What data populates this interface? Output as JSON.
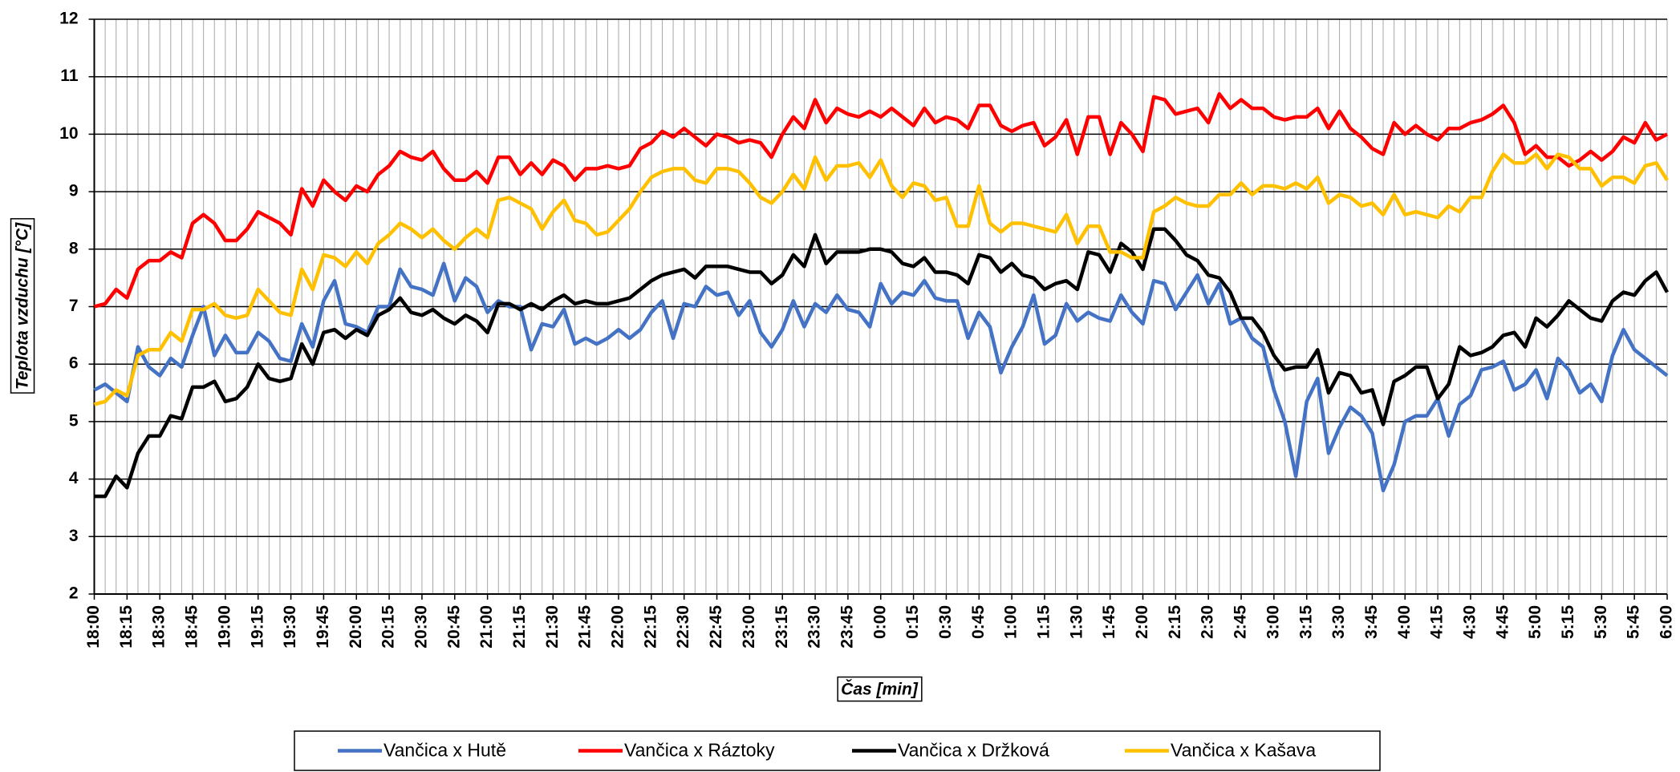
{
  "chart_data": {
    "type": "line",
    "ylabel": "Teplota vzduchu [°C]",
    "xlabel": "Čas [min]",
    "ylim": [
      2,
      12
    ],
    "yticks": [
      2,
      3,
      4,
      5,
      6,
      7,
      8,
      9,
      10,
      11,
      12
    ],
    "grid": true,
    "legend": "bottom",
    "categories": [
      "18:00",
      null,
      null,
      "18:15",
      null,
      null,
      "18:30",
      null,
      null,
      "18:45",
      null,
      null,
      "19:00",
      null,
      null,
      "19:15",
      null,
      null,
      "19:30",
      null,
      null,
      "19:45",
      null,
      null,
      "20:00",
      null,
      null,
      "20:15",
      null,
      null,
      "20:30",
      null,
      null,
      "20:45",
      null,
      null,
      "21:00",
      null,
      null,
      "21:15",
      null,
      null,
      "21:30",
      null,
      null,
      "21:45",
      null,
      null,
      "22:00",
      null,
      null,
      "22:15",
      null,
      null,
      "22:30",
      null,
      null,
      "22:45",
      null,
      null,
      "23:00",
      null,
      null,
      "23:15",
      null,
      null,
      "23:30",
      null,
      null,
      "23:45",
      null,
      null,
      "0:00",
      null,
      null,
      "0:15",
      null,
      null,
      "0:30",
      null,
      null,
      "0:45",
      null,
      null,
      "1:00",
      null,
      null,
      "1:15",
      null,
      null,
      "1:30",
      null,
      null,
      "1:45",
      null,
      null,
      "2:00",
      null,
      null,
      "2:15",
      null,
      null,
      "2:30",
      null,
      null,
      "2:45",
      null,
      null,
      "3:00",
      null,
      null,
      "3:15",
      null,
      null,
      "3:30",
      null,
      null,
      "3:45",
      null,
      null,
      "4:00",
      null,
      null,
      "4:15",
      null,
      null,
      "4:30",
      null,
      null,
      "4:45",
      null,
      null,
      "5:00",
      null,
      null,
      "5:15",
      null,
      null,
      "5:30",
      null,
      null,
      "5:45",
      null,
      null,
      "6:00"
    ],
    "series": [
      {
        "name": "Vančica x Hutě",
        "color": "#4472c4",
        "values": [
          5.55,
          5.65,
          5.5,
          5.35,
          6.3,
          5.95,
          5.8,
          6.1,
          5.95,
          6.5,
          7.0,
          6.15,
          6.5,
          6.2,
          6.2,
          6.55,
          6.4,
          6.1,
          6.05,
          6.7,
          6.3,
          7.1,
          7.45,
          6.7,
          6.65,
          6.55,
          7.0,
          7.0,
          7.65,
          7.35,
          7.3,
          7.2,
          7.75,
          7.1,
          7.5,
          7.35,
          6.9,
          7.1,
          7.0,
          7.0,
          6.25,
          6.7,
          6.65,
          6.95,
          6.35,
          6.45,
          6.35,
          6.45,
          6.6,
          6.45,
          6.6,
          6.9,
          7.1,
          6.45,
          7.05,
          7.0,
          7.35,
          7.2,
          7.25,
          6.85,
          7.1,
          6.55,
          6.3,
          6.6,
          7.1,
          6.65,
          7.05,
          6.9,
          7.2,
          6.95,
          6.9,
          6.65,
          7.4,
          7.05,
          7.25,
          7.2,
          7.45,
          7.15,
          7.1,
          7.1,
          6.45,
          6.9,
          6.65,
          5.85,
          6.3,
          6.65,
          7.2,
          6.35,
          6.5,
          7.05,
          6.75,
          6.9,
          6.8,
          6.75,
          7.2,
          6.9,
          6.7,
          7.45,
          7.4,
          6.95,
          7.25,
          7.55,
          7.05,
          7.4,
          6.7,
          6.8,
          6.45,
          6.3,
          5.55,
          5.0,
          4.05,
          5.35,
          5.75,
          4.45,
          4.9,
          5.25,
          5.1,
          4.8,
          3.8,
          4.25,
          5.0,
          5.1,
          5.1,
          5.4,
          4.75,
          5.3,
          5.45,
          5.9,
          5.95,
          6.05,
          5.55,
          5.65,
          5.9,
          5.4,
          6.1,
          5.9,
          5.5,
          5.65,
          5.35,
          6.15,
          6.6,
          6.25,
          6.1,
          5.95,
          5.8
        ]
      },
      {
        "name": "Vančica x Ráztoky",
        "color": "#ff0000",
        "values": [
          7.0,
          7.05,
          7.3,
          7.15,
          7.65,
          7.8,
          7.8,
          7.95,
          7.85,
          8.45,
          8.6,
          8.45,
          8.15,
          8.15,
          8.35,
          8.65,
          8.55,
          8.45,
          8.25,
          9.05,
          8.75,
          9.2,
          9.0,
          8.85,
          9.1,
          9.0,
          9.3,
          9.45,
          9.7,
          9.6,
          9.55,
          9.7,
          9.4,
          9.2,
          9.2,
          9.35,
          9.15,
          9.6,
          9.6,
          9.3,
          9.5,
          9.3,
          9.55,
          9.45,
          9.2,
          9.4,
          9.4,
          9.45,
          9.4,
          9.45,
          9.75,
          9.85,
          10.05,
          9.95,
          10.1,
          9.95,
          9.8,
          10.0,
          9.95,
          9.85,
          9.9,
          9.85,
          9.6,
          10.0,
          10.3,
          10.1,
          10.6,
          10.2,
          10.45,
          10.35,
          10.3,
          10.4,
          10.3,
          10.45,
          10.3,
          10.15,
          10.45,
          10.2,
          10.3,
          10.25,
          10.1,
          10.5,
          10.5,
          10.15,
          10.05,
          10.15,
          10.2,
          9.8,
          9.95,
          10.25,
          9.65,
          10.3,
          10.3,
          9.65,
          10.2,
          10.0,
          9.7,
          10.65,
          10.6,
          10.35,
          10.4,
          10.45,
          10.2,
          10.7,
          10.45,
          10.6,
          10.45,
          10.45,
          10.3,
          10.25,
          10.3,
          10.3,
          10.45,
          10.1,
          10.4,
          10.1,
          9.95,
          9.75,
          9.65,
          10.2,
          10.0,
          10.15,
          10.0,
          9.9,
          10.1,
          10.1,
          10.2,
          10.25,
          10.35,
          10.5,
          10.2,
          9.65,
          9.8,
          9.6,
          9.6,
          9.45,
          9.55,
          9.7,
          9.55,
          9.7,
          9.95,
          9.85,
          10.2,
          9.9,
          10.0
        ]
      },
      {
        "name": "Vančica x Držková",
        "color": "#000000",
        "values": [
          3.7,
          3.7,
          4.05,
          3.85,
          4.45,
          4.75,
          4.75,
          5.1,
          5.05,
          5.6,
          5.6,
          5.7,
          5.35,
          5.4,
          5.6,
          6.0,
          5.75,
          5.7,
          5.75,
          6.35,
          6.0,
          6.55,
          6.6,
          6.45,
          6.6,
          6.5,
          6.85,
          6.95,
          7.15,
          6.9,
          6.85,
          6.95,
          6.8,
          6.7,
          6.85,
          6.75,
          6.55,
          7.05,
          7.05,
          6.95,
          7.05,
          6.95,
          7.1,
          7.2,
          7.05,
          7.1,
          7.05,
          7.05,
          7.1,
          7.15,
          7.3,
          7.45,
          7.55,
          7.6,
          7.65,
          7.5,
          7.7,
          7.7,
          7.7,
          7.65,
          7.6,
          7.6,
          7.4,
          7.55,
          7.9,
          7.7,
          8.25,
          7.75,
          7.95,
          7.95,
          7.95,
          8.0,
          8.0,
          7.95,
          7.75,
          7.7,
          7.85,
          7.6,
          7.6,
          7.55,
          7.4,
          7.9,
          7.85,
          7.6,
          7.75,
          7.55,
          7.5,
          7.3,
          7.4,
          7.45,
          7.3,
          7.95,
          7.9,
          7.6,
          8.1,
          7.95,
          7.65,
          8.35,
          8.35,
          8.15,
          7.9,
          7.8,
          7.55,
          7.5,
          7.25,
          6.8,
          6.8,
          6.55,
          6.15,
          5.9,
          5.95,
          5.95,
          6.25,
          5.5,
          5.85,
          5.8,
          5.5,
          5.55,
          4.95,
          5.7,
          5.8,
          5.95,
          5.95,
          5.4,
          5.65,
          6.3,
          6.15,
          6.2,
          6.3,
          6.5,
          6.55,
          6.3,
          6.8,
          6.65,
          6.85,
          7.1,
          6.95,
          6.8,
          6.75,
          7.1,
          7.25,
          7.2,
          7.45,
          7.6,
          7.25
        ]
      },
      {
        "name": "Vančica x Kašava",
        "color": "#ffc000",
        "values": [
          5.3,
          5.35,
          5.55,
          5.45,
          6.15,
          6.25,
          6.25,
          6.55,
          6.4,
          6.95,
          6.95,
          7.05,
          6.85,
          6.8,
          6.85,
          7.3,
          7.1,
          6.9,
          6.85,
          7.65,
          7.3,
          7.9,
          7.85,
          7.7,
          7.95,
          7.75,
          8.1,
          8.25,
          8.45,
          8.35,
          8.2,
          8.35,
          8.15,
          8.0,
          8.2,
          8.35,
          8.2,
          8.85,
          8.9,
          8.8,
          8.7,
          8.35,
          8.65,
          8.85,
          8.5,
          8.45,
          8.25,
          8.3,
          8.5,
          8.7,
          9.0,
          9.25,
          9.35,
          9.4,
          9.4,
          9.2,
          9.15,
          9.4,
          9.4,
          9.35,
          9.15,
          8.9,
          8.8,
          9.0,
          9.3,
          9.05,
          9.6,
          9.2,
          9.45,
          9.45,
          9.5,
          9.25,
          9.55,
          9.1,
          8.9,
          9.15,
          9.1,
          8.85,
          8.9,
          8.4,
          8.4,
          9.1,
          8.45,
          8.3,
          8.45,
          8.45,
          8.4,
          8.35,
          8.3,
          8.6,
          8.1,
          8.4,
          8.4,
          7.95,
          7.95,
          7.85,
          7.85,
          8.65,
          8.75,
          8.9,
          8.8,
          8.75,
          8.75,
          8.95,
          8.95,
          9.15,
          8.95,
          9.1,
          9.1,
          9.05,
          9.15,
          9.05,
          9.25,
          8.8,
          8.95,
          8.9,
          8.75,
          8.8,
          8.6,
          8.95,
          8.6,
          8.65,
          8.6,
          8.55,
          8.75,
          8.65,
          8.9,
          8.9,
          9.35,
          9.65,
          9.5,
          9.5,
          9.65,
          9.4,
          9.65,
          9.6,
          9.4,
          9.4,
          9.1,
          9.25,
          9.25,
          9.15,
          9.45,
          9.5,
          9.2
        ]
      }
    ]
  }
}
